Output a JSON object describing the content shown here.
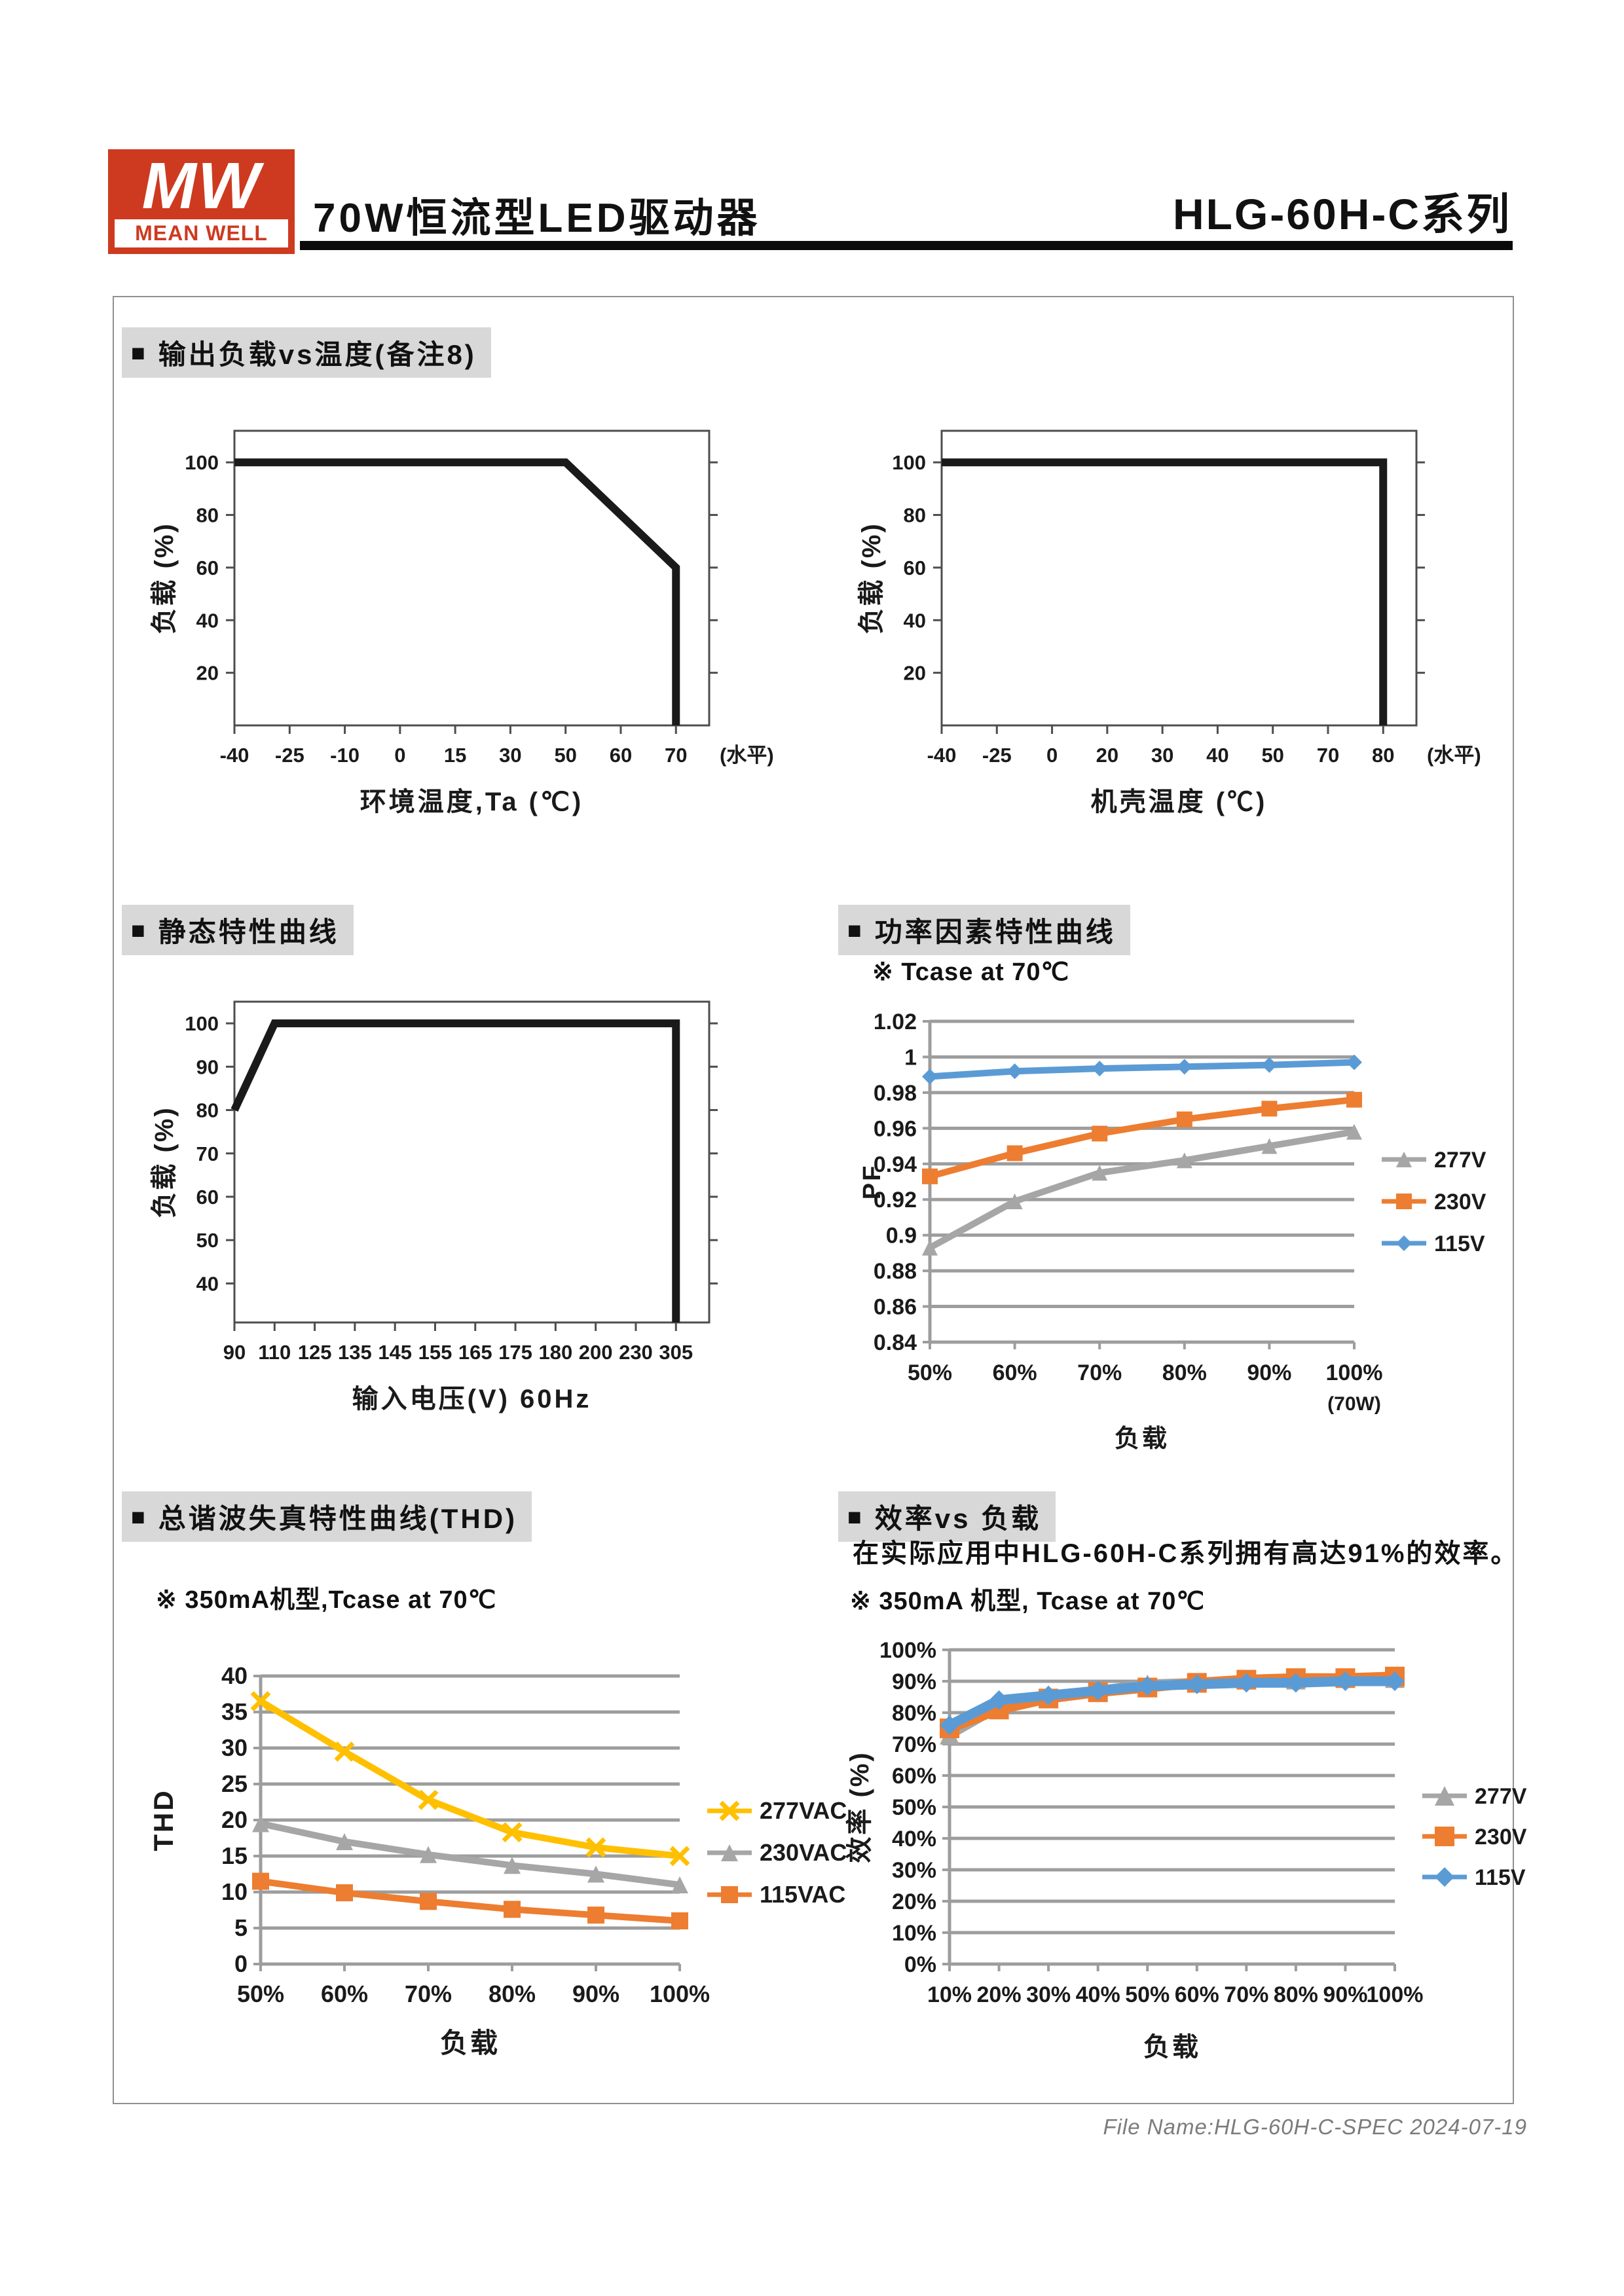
{
  "ui": {
    "bullet": "■"
  },
  "header": {
    "logo_mw": "MW",
    "logo_brand": "MEAN WELL",
    "title": "70W恒流型LED驱动器",
    "series_code": "HLG-60H-C",
    "series_suffix": "系列"
  },
  "sections": {
    "derating_ambient": {
      "title": "输出负载vs温度(备注8)"
    },
    "static_curve": {
      "title": "静态特性曲线"
    },
    "power_factor": {
      "title": "功率因素特性曲线",
      "note": "※ Tcase at 70℃"
    },
    "thd": {
      "title": "总谐波失真特性曲线(THD)",
      "note": "※ 350mA机型,Tcase at 70℃"
    },
    "efficiency": {
      "title": "效率vs 负载",
      "description": "在实际应用中HLG-60H-C系列拥有高达91%的效率。",
      "note": "※ 350mA 机型, Tcase at 70℃"
    }
  },
  "footer": {
    "file_info": "File Name:HLG-60H-C-SPEC  2024-07-19"
  },
  "chart_data": [
    {
      "type": "line",
      "style": "box",
      "title": "输出负载vs温度(备注8)",
      "xlabel": "环境温度,Ta (℃)",
      "ylabel": "负载 (%)",
      "x_axis_suffix": "(水平)",
      "categories": [
        "-40",
        "-25",
        "-10",
        "0",
        "15",
        "30",
        "50",
        "60",
        "70"
      ],
      "x_span": 0.93,
      "yticks": [
        20,
        40,
        60,
        80,
        100
      ],
      "ylim": [
        0,
        112
      ],
      "grid": false,
      "tick_font": 31,
      "label_font": 40,
      "xlabel_dy": 130,
      "series": [
        {
          "name": "load-limit",
          "color": "#1a1a1a",
          "points": [
            [
              0,
              100
            ],
            [
              6,
              100
            ],
            [
              8,
              60
            ],
            [
              8,
              0
            ]
          ]
        }
      ]
    },
    {
      "type": "line",
      "style": "box",
      "title": "输出负载vs温度(备注8)",
      "xlabel": "机壳温度 (℃)",
      "ylabel": "负载 (%)",
      "x_axis_suffix": "(水平)",
      "categories": [
        "-40",
        "-25",
        "0",
        "20",
        "30",
        "40",
        "50",
        "70",
        "80"
      ],
      "x_span": 0.93,
      "yticks": [
        20,
        40,
        60,
        80,
        100
      ],
      "ylim": [
        0,
        112
      ],
      "grid": false,
      "tick_font": 31,
      "label_font": 40,
      "xlabel_dy": 130,
      "series": [
        {
          "name": "load-limit",
          "color": "#1a1a1a",
          "points": [
            [
              0,
              100
            ],
            [
              8,
              100
            ],
            [
              8,
              0
            ]
          ]
        }
      ]
    },
    {
      "type": "line",
      "style": "box",
      "title": "静态特性曲线",
      "xlabel": "输入电压(V) 60Hz",
      "ylabel": "负载 (%)",
      "categories": [
        "90",
        "110",
        "125",
        "135",
        "145",
        "155",
        "165",
        "175",
        "180",
        "200",
        "230",
        "305"
      ],
      "x_span": 0.93,
      "yticks": [
        40,
        50,
        60,
        70,
        80,
        90,
        100
      ],
      "ylim": [
        31,
        105
      ],
      "grid": false,
      "tick_font": 31,
      "label_font": 40,
      "xlabel_dy": 130,
      "series": [
        {
          "name": "load-limit",
          "color": "#1a1a1a",
          "points": [
            [
              0,
              80
            ],
            [
              1,
              100
            ],
            [
              11,
              100
            ],
            [
              11,
              0
            ]
          ]
        }
      ]
    },
    {
      "type": "line",
      "style": "excel",
      "title": "功率因素特性曲线",
      "subtitle": "※ Tcase at 70℃",
      "xlabel": "负载",
      "ylabel": "PF",
      "categories": [
        "50%",
        "60%",
        "70%",
        "80%",
        "90%",
        "100%"
      ],
      "x_sub_label": "(70W)",
      "yticks": [
        0.84,
        0.86,
        0.88,
        0.9,
        0.92,
        0.94,
        0.96,
        0.98,
        1,
        1.02
      ],
      "ylim": [
        0.84,
        1.02
      ],
      "grid": true,
      "legend": "right",
      "legend_dy": 30,
      "legend_gap": 64,
      "tick_font": 34,
      "label_font": 38,
      "xlabel_dy": 160,
      "line_width": 10,
      "marker_size": 12,
      "series": [
        {
          "name": "277V",
          "color": "#a6a6a6",
          "marker": "triangle",
          "values": [
            0.893,
            0.919,
            0.935,
            0.942,
            0.95,
            0.958
          ]
        },
        {
          "name": "230V",
          "color": "#ed7d31",
          "marker": "square",
          "values": [
            0.933,
            0.946,
            0.957,
            0.965,
            0.971,
            0.976
          ]
        },
        {
          "name": "115V",
          "color": "#5b9bd5",
          "marker": "diamond",
          "values": [
            0.989,
            0.992,
            0.9935,
            0.9945,
            0.9955,
            0.997
          ]
        }
      ]
    },
    {
      "type": "line",
      "style": "excel",
      "title": "总谐波失真特性曲线(THD)",
      "subtitle": "※ 350mA机型,Tcase at 70℃",
      "xlabel": "负载",
      "ylabel": "THD",
      "categories": [
        "50%",
        "60%",
        "70%",
        "80%",
        "90%",
        "100%"
      ],
      "yticks": [
        0,
        5,
        10,
        15,
        20,
        25,
        30,
        35,
        40
      ],
      "ylim": [
        0,
        40
      ],
      "grid": true,
      "legend": "right",
      "legend_dy": 50,
      "legend_gap": 64,
      "tick_font": 36,
      "label_font": 42,
      "xlabel_dy": 135,
      "line_width": 10,
      "marker_size": 13,
      "series": [
        {
          "name": "277VAC",
          "color": "#ffc000",
          "marker": "x",
          "values": [
            36.5,
            29.5,
            22.8,
            18.3,
            16.2,
            15
          ]
        },
        {
          "name": "230VAC",
          "color": "#a6a6a6",
          "marker": "triangle",
          "values": [
            19.5,
            17,
            15.2,
            13.7,
            12.5,
            11
          ]
        },
        {
          "name": "115VAC",
          "color": "#ed7d31",
          "marker": "square",
          "values": [
            11.5,
            9.9,
            8.7,
            7.6,
            6.8,
            6
          ]
        }
      ]
    },
    {
      "type": "line",
      "style": "excel",
      "title": "效率vs 负载",
      "subtitle": "※ 350mA 机型, Tcase at 70℃",
      "annotation": "在实际应用中HLG-60H-C系列拥有高达91%的效率。",
      "xlabel": "负载",
      "ylabel": "效率 (%)",
      "categories": [
        "10%",
        "20%",
        "30%",
        "40%",
        "50%",
        "60%",
        "70%",
        "80%",
        "90%",
        "100%"
      ],
      "yticks": [
        0,
        10,
        20,
        30,
        40,
        50,
        60,
        70,
        80,
        90,
        100
      ],
      "ytick_suffix": "%",
      "ylim": [
        0,
        100
      ],
      "grid": true,
      "legend": "right",
      "legend_dy": 45,
      "legend_gap": 62,
      "tick_font": 34,
      "label_font": 40,
      "xlabel_dy": 140,
      "line_width": 15,
      "marker_size": 15,
      "series": [
        {
          "name": "277V",
          "color": "#a6a6a6",
          "marker": "triangle",
          "values": [
            73,
            82,
            85,
            87,
            89,
            89.5,
            90.5,
            90.5,
            91,
            91
          ]
        },
        {
          "name": "230V",
          "color": "#ed7d31",
          "marker": "square",
          "values": [
            75,
            81,
            84.5,
            86.5,
            88,
            89.5,
            90.5,
            91,
            91,
            91.5
          ]
        },
        {
          "name": "115V",
          "color": "#5b9bd5",
          "marker": "diamond",
          "values": [
            76,
            84,
            85.5,
            87,
            88.5,
            89,
            89.5,
            89.5,
            90,
            90
          ]
        }
      ]
    }
  ]
}
